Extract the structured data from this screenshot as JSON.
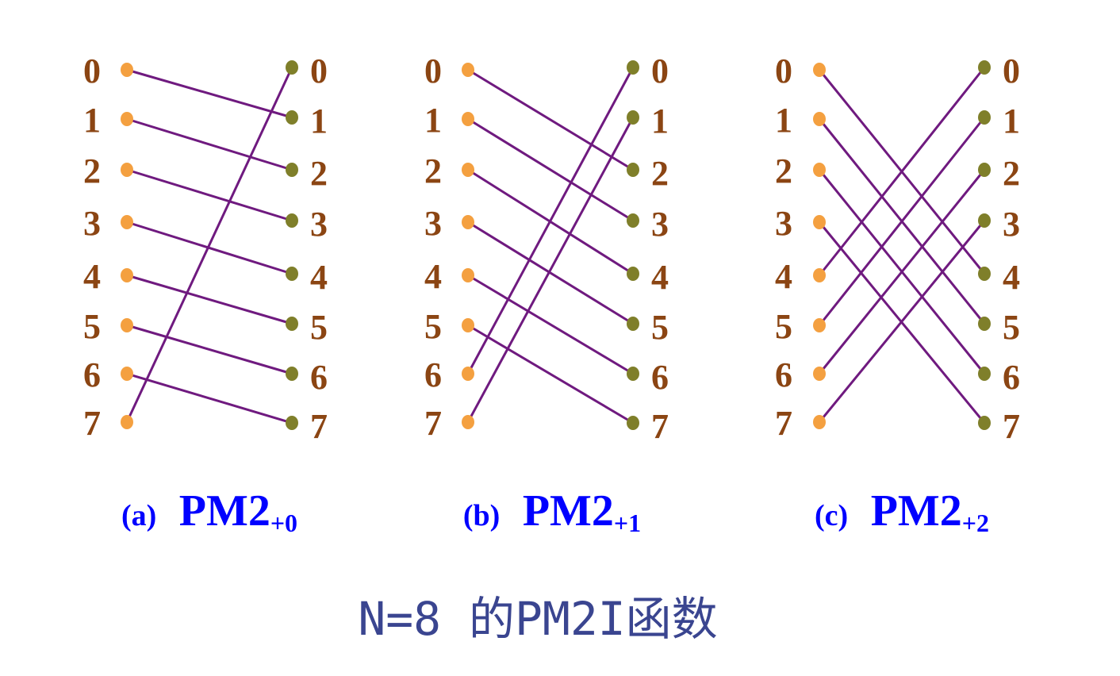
{
  "colors": {
    "label": "#8b4513",
    "input_dot": "#f4a040",
    "output_dot": "#7f7f2a",
    "wire": "#6f1a7f",
    "caption": "#0000ff",
    "title": "#3a4590"
  },
  "panels": [
    {
      "tag": "(a)",
      "func": "PM2",
      "sub": "+0",
      "input_labels": [
        "0",
        "1",
        "2",
        "3",
        "4",
        "5",
        "6",
        "7"
      ],
      "output_labels": [
        "0",
        "1",
        "2",
        "3",
        "4",
        "5",
        "6",
        "7"
      ],
      "mapping": [
        1,
        2,
        3,
        4,
        5,
        6,
        7,
        0
      ]
    },
    {
      "tag": "(b)",
      "func": "PM2",
      "sub": "+1",
      "input_labels": [
        "0",
        "1",
        "2",
        "3",
        "4",
        "5",
        "6",
        "7"
      ],
      "output_labels": [
        "0",
        "1",
        "2",
        "3",
        "4",
        "5",
        "6",
        "7"
      ],
      "mapping": [
        2,
        3,
        4,
        5,
        6,
        7,
        0,
        1
      ]
    },
    {
      "tag": "(c)",
      "func": "PM2",
      "sub": "+2",
      "input_labels": [
        "0",
        "1",
        "2",
        "3",
        "4",
        "5",
        "6",
        "7"
      ],
      "output_labels": [
        "0",
        "1",
        "2",
        "3",
        "4",
        "5",
        "6",
        "7"
      ],
      "mapping": [
        4,
        5,
        6,
        7,
        0,
        1,
        2,
        3
      ]
    }
  ],
  "title": "N=8 的PM2I函数"
}
